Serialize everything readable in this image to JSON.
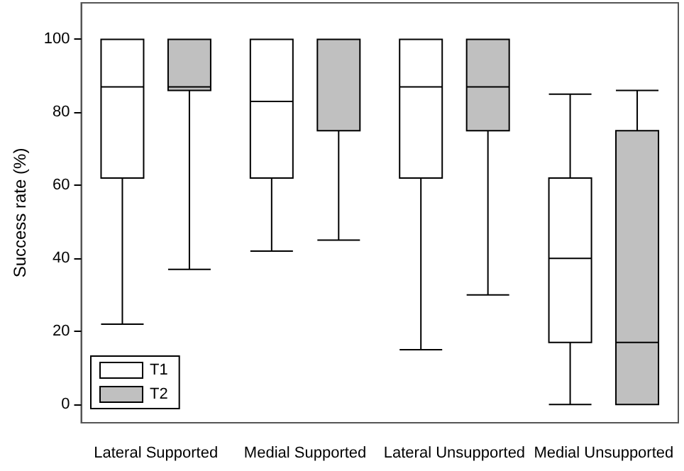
{
  "chart_data": {
    "type": "box",
    "ylabel": "Success rate (%)",
    "categories": [
      "Lateral Supported",
      "Medial Supported",
      "Lateral Unsupported",
      "Medial Unsupported"
    ],
    "series": [
      {
        "name": "T1",
        "color": "#ffffff",
        "boxes": [
          {
            "low": 22,
            "q1": 62,
            "median": 87,
            "q3": 100,
            "high": 100
          },
          {
            "low": 42,
            "q1": 62,
            "median": 83,
            "q3": 100,
            "high": 100
          },
          {
            "low": 15,
            "q1": 62,
            "median": 87,
            "q3": 100,
            "high": 100
          },
          {
            "low": 0,
            "q1": 17,
            "median": 40,
            "q3": 62,
            "high": 85
          }
        ]
      },
      {
        "name": "T2",
        "color": "#c0c0c0",
        "boxes": [
          {
            "low": 37,
            "q1": 86,
            "median": 87,
            "q3": 100,
            "high": 100
          },
          {
            "low": 45,
            "q1": 75,
            "median": 100,
            "q3": 100,
            "high": 100
          },
          {
            "low": 30,
            "q1": 75,
            "median": 87,
            "q3": 100,
            "high": 100
          },
          {
            "low": 0,
            "q1": 0,
            "median": 17,
            "q3": 75,
            "high": 86
          }
        ]
      }
    ],
    "ylim": [
      -5,
      110
    ],
    "yticks": [
      0,
      20,
      40,
      60,
      80,
      100
    ],
    "grid": false,
    "legend": "bottom left"
  }
}
